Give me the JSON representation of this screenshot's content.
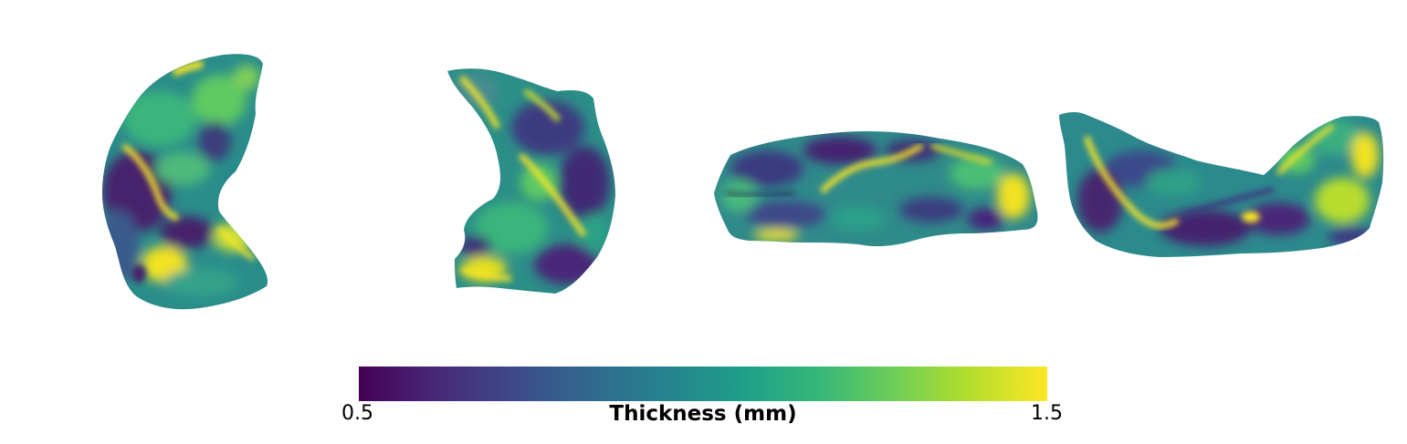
{
  "views": [
    {
      "name": "view-1"
    },
    {
      "name": "view-2"
    },
    {
      "name": "view-3"
    },
    {
      "name": "view-4"
    }
  ],
  "colorbar": {
    "label": "Thickness (mm)",
    "min_label": "0.5",
    "max_label": "1.5",
    "min": 0.5,
    "max": 1.5,
    "colormap": "viridis",
    "stops": [
      "#440154",
      "#482878",
      "#3e4989",
      "#31688e",
      "#26828e",
      "#1f9e89",
      "#35b779",
      "#6ece58",
      "#b5de2b",
      "#fde725"
    ]
  }
}
